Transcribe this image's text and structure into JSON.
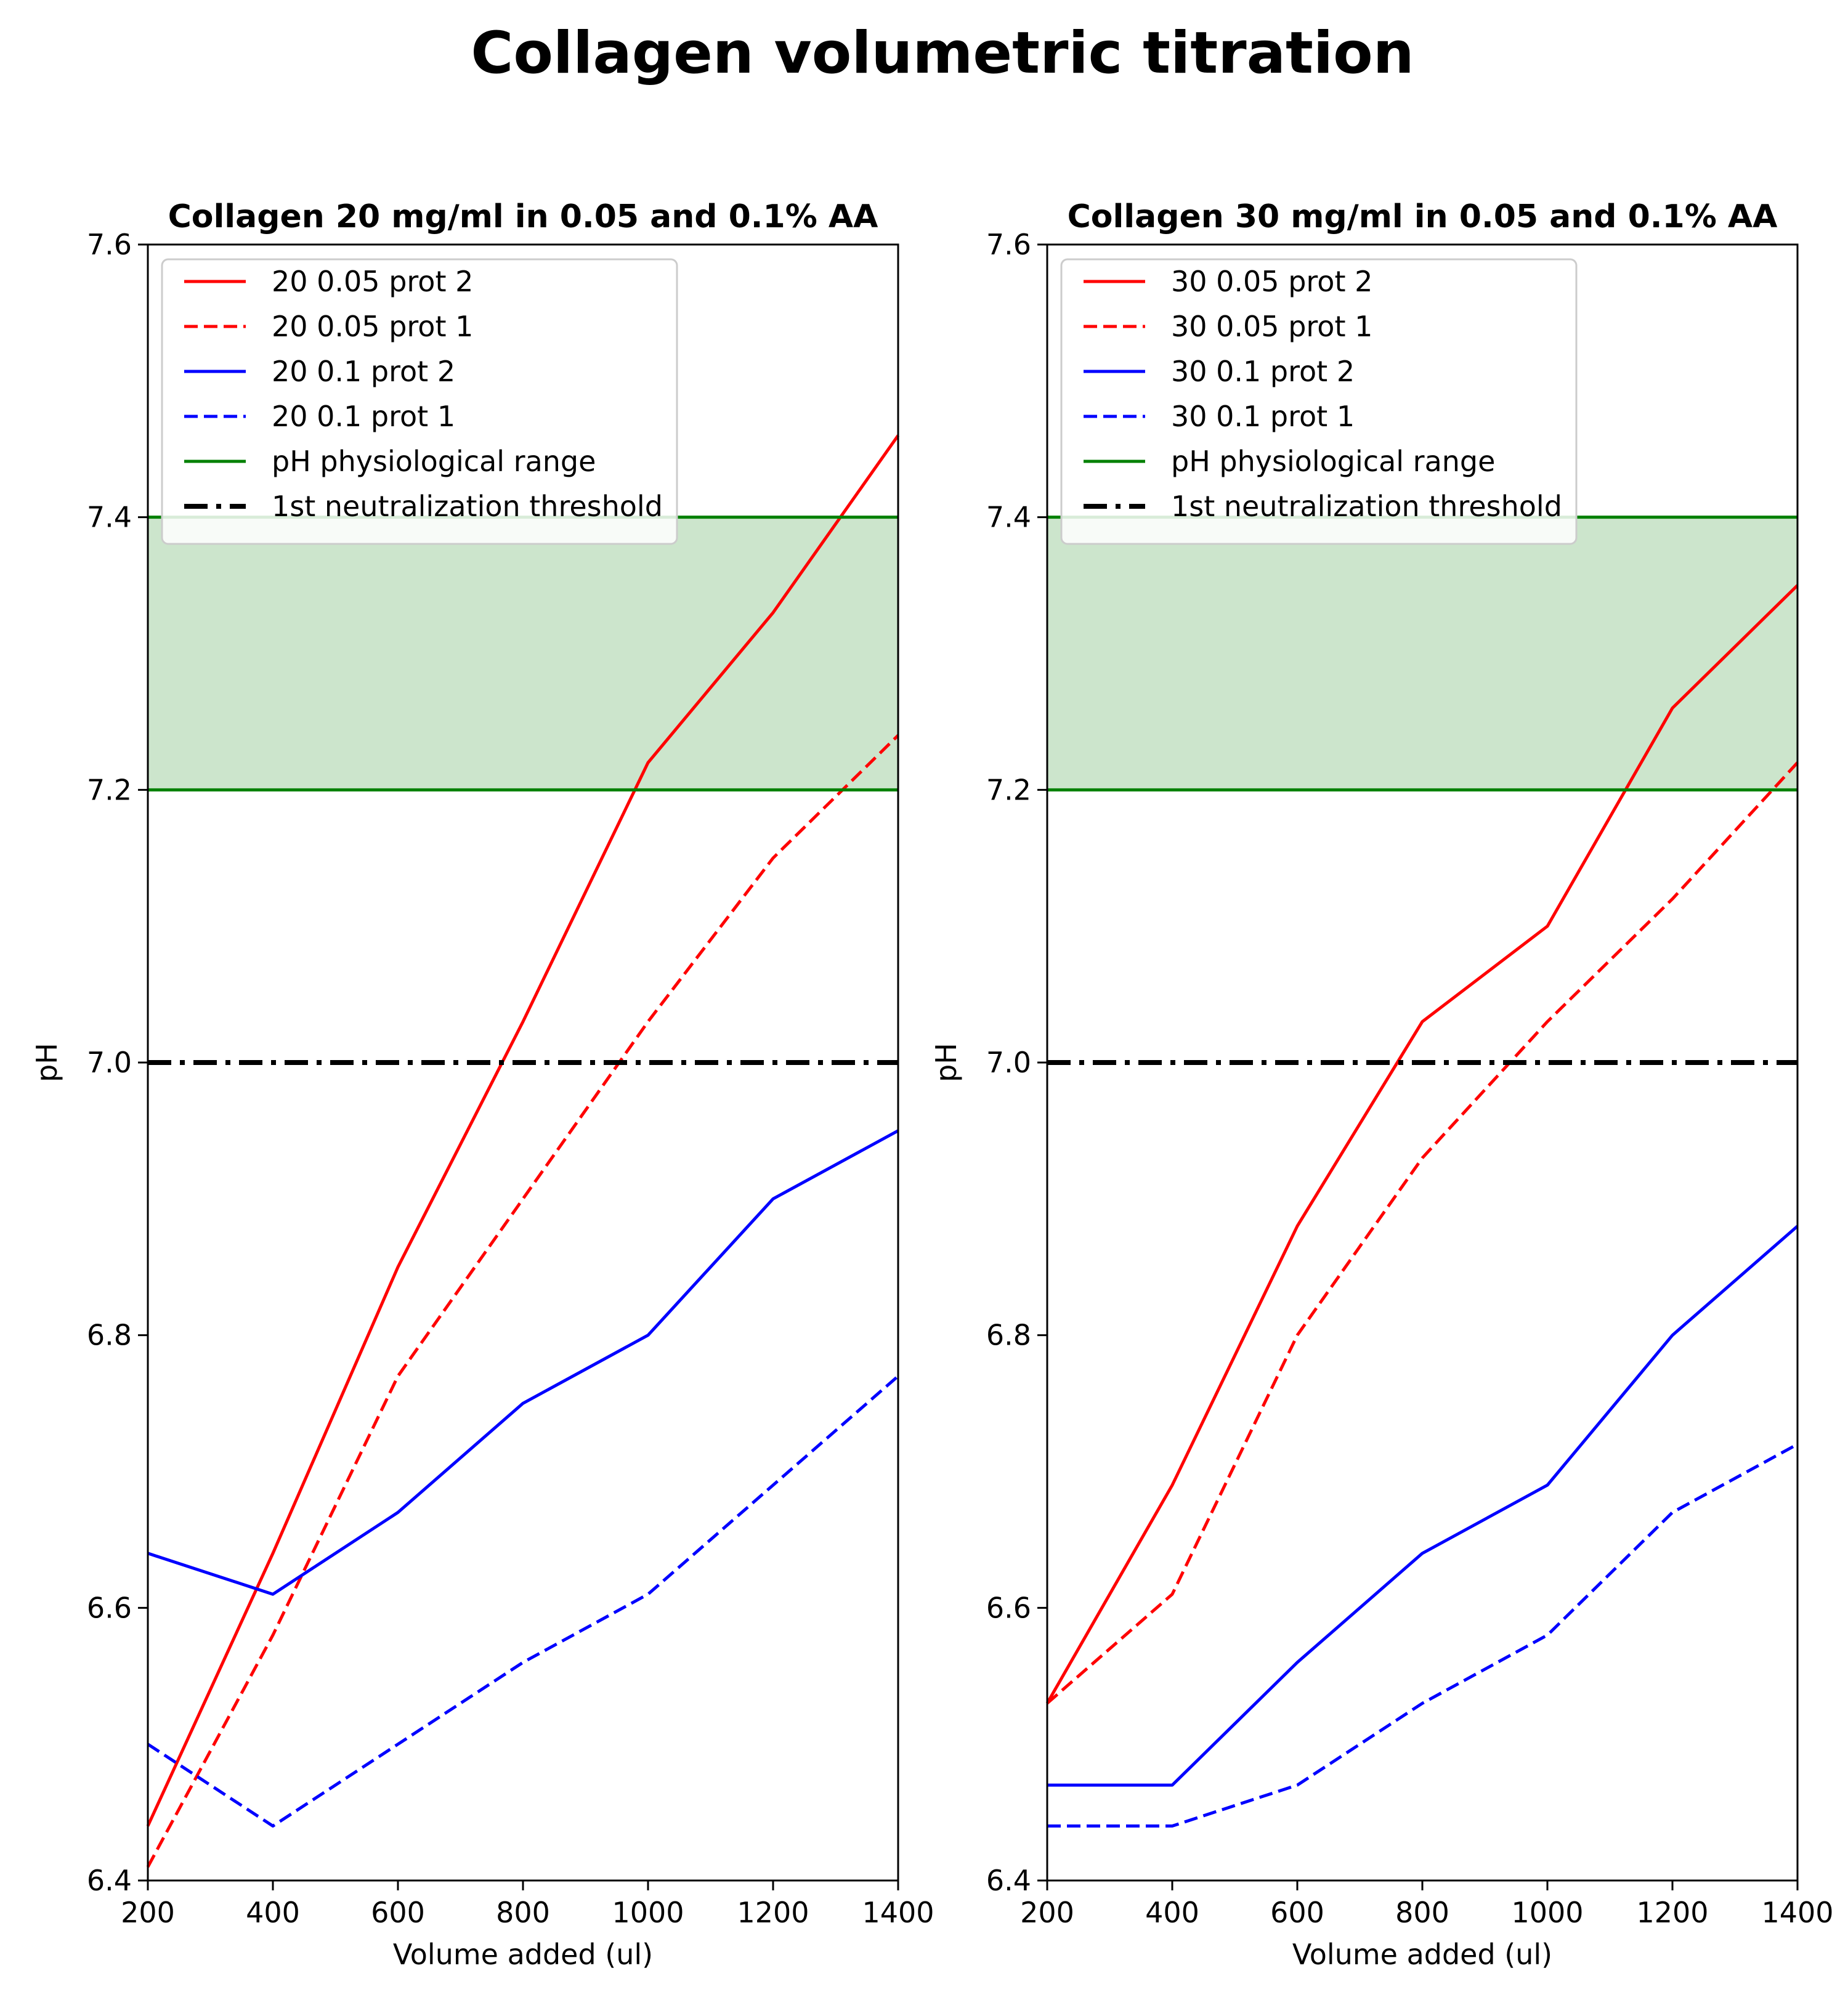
{
  "figure_title": "Collagen volumetric titration",
  "chart_data": [
    {
      "type": "line",
      "title": "Collagen 20 mg/ml in 0.05 and 0.1% AA",
      "xlabel": "Volume added (ul)",
      "ylabel": "pH",
      "xlim": [
        200,
        1400
      ],
      "ylim": [
        6.4,
        7.6
      ],
      "x_ticks": [
        200,
        400,
        600,
        800,
        1000,
        1200,
        1400
      ],
      "x_tick_labels": [
        "200",
        "400",
        "600",
        "800",
        "1000",
        "1200",
        "1400"
      ],
      "y_ticks": [
        6.4,
        6.6,
        6.8,
        7.0,
        7.2,
        7.4,
        7.6
      ],
      "y_tick_labels": [
        "6.4",
        "6.6",
        "6.8",
        "7.0",
        "7.2",
        "7.4",
        "7.6"
      ],
      "x": [
        200,
        400,
        600,
        800,
        1000,
        1200,
        1400
      ],
      "series": [
        {
          "name": "20 0.05 prot 2",
          "color": "#ff0000",
          "dash": "solid",
          "values": [
            6.44,
            6.64,
            6.85,
            7.03,
            7.22,
            7.33,
            7.46
          ]
        },
        {
          "name": "20 0.05 prot 1",
          "color": "#ff0000",
          "dash": "dashed",
          "values": [
            6.41,
            6.58,
            6.77,
            6.9,
            7.03,
            7.15,
            7.24
          ]
        },
        {
          "name": "20 0.1 prot 2",
          "color": "#0000ff",
          "dash": "solid",
          "values": [
            6.64,
            6.61,
            6.67,
            6.75,
            6.8,
            6.9,
            6.95
          ]
        },
        {
          "name": "20 0.1 prot 1",
          "color": "#0000ff",
          "dash": "dashed",
          "values": [
            6.5,
            6.44,
            6.5,
            6.56,
            6.61,
            6.69,
            6.77
          ]
        }
      ],
      "physiological_range": {
        "name": "pH physiological range",
        "low": 7.2,
        "high": 7.4,
        "color": "#008000",
        "fill": "#cce5cc"
      },
      "threshold": {
        "name": "1st neutralization threshold",
        "value": 7.0,
        "color": "#000000"
      },
      "legend": "upper-left"
    },
    {
      "type": "line",
      "title": "Collagen 30 mg/ml in 0.05 and 0.1% AA",
      "xlabel": "Volume added (ul)",
      "ylabel": "pH",
      "xlim": [
        200,
        1400
      ],
      "ylim": [
        6.4,
        7.6
      ],
      "x_ticks": [
        200,
        400,
        600,
        800,
        1000,
        1200,
        1400
      ],
      "x_tick_labels": [
        "200",
        "400",
        "600",
        "800",
        "1000",
        "1200",
        "1400"
      ],
      "y_ticks": [
        6.4,
        6.6,
        6.8,
        7.0,
        7.2,
        7.4,
        7.6
      ],
      "y_tick_labels": [
        "6.4",
        "6.6",
        "6.8",
        "7.0",
        "7.2",
        "7.4",
        "7.6"
      ],
      "x": [
        200,
        400,
        600,
        800,
        1000,
        1200,
        1400
      ],
      "series": [
        {
          "name": "30 0.05 prot 2",
          "color": "#ff0000",
          "dash": "solid",
          "values": [
            6.53,
            6.69,
            6.88,
            7.03,
            7.1,
            7.26,
            7.35
          ]
        },
        {
          "name": "30 0.05 prot 1",
          "color": "#ff0000",
          "dash": "dashed",
          "values": [
            6.53,
            6.61,
            6.8,
            6.93,
            7.03,
            7.12,
            7.22
          ]
        },
        {
          "name": "30 0.1 prot 2",
          "color": "#0000ff",
          "dash": "solid",
          "values": [
            6.47,
            6.47,
            6.56,
            6.64,
            6.69,
            6.8,
            6.88
          ]
        },
        {
          "name": "30 0.1 prot 1",
          "color": "#0000ff",
          "dash": "dashed",
          "values": [
            6.44,
            6.44,
            6.47,
            6.53,
            6.58,
            6.67,
            6.72
          ]
        }
      ],
      "physiological_range": {
        "name": "pH physiological range",
        "low": 7.2,
        "high": 7.4,
        "color": "#008000",
        "fill": "#cce5cc"
      },
      "threshold": {
        "name": "1st neutralization threshold",
        "value": 7.0,
        "color": "#000000"
      },
      "legend": "upper-left"
    }
  ]
}
